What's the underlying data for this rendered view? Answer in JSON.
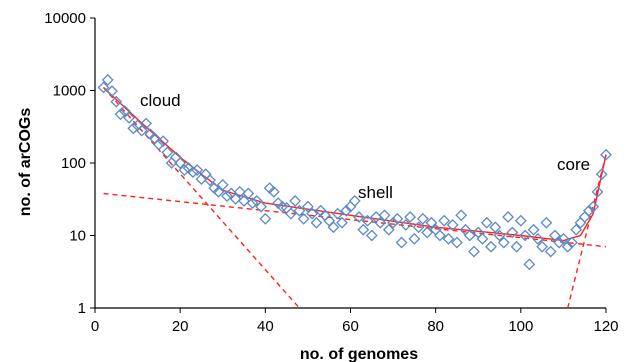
{
  "chart_data": {
    "type": "scatter",
    "xlabel": "no. of genomes",
    "ylabel": "no. of arCOGs",
    "xlim": [
      0,
      120
    ],
    "ylim": [
      1,
      10000
    ],
    "y_scale": "log",
    "grid": false,
    "x_ticks": [
      "0",
      "20",
      "40",
      "60",
      "80",
      "100",
      "120"
    ],
    "y_ticks": [
      "1",
      "10",
      "100",
      "1000",
      "10000"
    ],
    "annotations": [
      "cloud",
      "shell",
      "core"
    ],
    "marker_color": "#5b8ac6",
    "fit_color": "#ff2020",
    "points": [
      {
        "x": 2,
        "y": 1100
      },
      {
        "x": 3,
        "y": 1400
      },
      {
        "x": 4,
        "y": 980
      },
      {
        "x": 5,
        "y": 700
      },
      {
        "x": 6,
        "y": 470
      },
      {
        "x": 7,
        "y": 520
      },
      {
        "x": 8,
        "y": 420
      },
      {
        "x": 9,
        "y": 300
      },
      {
        "x": 10,
        "y": 330
      },
      {
        "x": 11,
        "y": 280
      },
      {
        "x": 12,
        "y": 350
      },
      {
        "x": 13,
        "y": 250
      },
      {
        "x": 14,
        "y": 220
      },
      {
        "x": 15,
        "y": 180
      },
      {
        "x": 16,
        "y": 200
      },
      {
        "x": 17,
        "y": 140
      },
      {
        "x": 18,
        "y": 100
      },
      {
        "x": 19,
        "y": 120
      },
      {
        "x": 20,
        "y": 100
      },
      {
        "x": 21,
        "y": 80
      },
      {
        "x": 22,
        "y": 85
      },
      {
        "x": 23,
        "y": 75
      },
      {
        "x": 24,
        "y": 80
      },
      {
        "x": 25,
        "y": 60
      },
      {
        "x": 26,
        "y": 70
      },
      {
        "x": 27,
        "y": 58
      },
      {
        "x": 28,
        "y": 45
      },
      {
        "x": 29,
        "y": 40
      },
      {
        "x": 30,
        "y": 50
      },
      {
        "x": 31,
        "y": 35
      },
      {
        "x": 32,
        "y": 38
      },
      {
        "x": 33,
        "y": 32
      },
      {
        "x": 34,
        "y": 40
      },
      {
        "x": 35,
        "y": 30
      },
      {
        "x": 36,
        "y": 38
      },
      {
        "x": 37,
        "y": 28
      },
      {
        "x": 38,
        "y": 30
      },
      {
        "x": 39,
        "y": 25
      },
      {
        "x": 40,
        "y": 17
      },
      {
        "x": 41,
        "y": 45
      },
      {
        "x": 42,
        "y": 40
      },
      {
        "x": 43,
        "y": 28
      },
      {
        "x": 44,
        "y": 25
      },
      {
        "x": 45,
        "y": 24
      },
      {
        "x": 46,
        "y": 20
      },
      {
        "x": 47,
        "y": 30
      },
      {
        "x": 48,
        "y": 22
      },
      {
        "x": 49,
        "y": 17
      },
      {
        "x": 50,
        "y": 25
      },
      {
        "x": 51,
        "y": 20
      },
      {
        "x": 52,
        "y": 15
      },
      {
        "x": 53,
        "y": 22
      },
      {
        "x": 54,
        "y": 19
      },
      {
        "x": 55,
        "y": 16
      },
      {
        "x": 56,
        "y": 13
      },
      {
        "x": 57,
        "y": 20
      },
      {
        "x": 58,
        "y": 15
      },
      {
        "x": 59,
        "y": 22
      },
      {
        "x": 60,
        "y": 25
      },
      {
        "x": 61,
        "y": 30
      },
      {
        "x": 62,
        "y": 18
      },
      {
        "x": 63,
        "y": 12
      },
      {
        "x": 64,
        "y": 16
      },
      {
        "x": 65,
        "y": 10
      },
      {
        "x": 66,
        "y": 18
      },
      {
        "x": 67,
        "y": 15
      },
      {
        "x": 68,
        "y": 19
      },
      {
        "x": 69,
        "y": 12
      },
      {
        "x": 70,
        "y": 15
      },
      {
        "x": 71,
        "y": 17
      },
      {
        "x": 72,
        "y": 8
      },
      {
        "x": 73,
        "y": 14
      },
      {
        "x": 74,
        "y": 18
      },
      {
        "x": 75,
        "y": 9
      },
      {
        "x": 76,
        "y": 13
      },
      {
        "x": 77,
        "y": 17
      },
      {
        "x": 78,
        "y": 11
      },
      {
        "x": 79,
        "y": 15
      },
      {
        "x": 80,
        "y": 12
      },
      {
        "x": 81,
        "y": 10
      },
      {
        "x": 82,
        "y": 16
      },
      {
        "x": 83,
        "y": 9
      },
      {
        "x": 84,
        "y": 14
      },
      {
        "x": 85,
        "y": 8
      },
      {
        "x": 86,
        "y": 19
      },
      {
        "x": 87,
        "y": 12
      },
      {
        "x": 88,
        "y": 10
      },
      {
        "x": 89,
        "y": 6
      },
      {
        "x": 90,
        "y": 11
      },
      {
        "x": 91,
        "y": 9
      },
      {
        "x": 92,
        "y": 15
      },
      {
        "x": 93,
        "y": 7
      },
      {
        "x": 94,
        "y": 13
      },
      {
        "x": 95,
        "y": 10
      },
      {
        "x": 96,
        "y": 8
      },
      {
        "x": 97,
        "y": 18
      },
      {
        "x": 98,
        "y": 11
      },
      {
        "x": 99,
        "y": 7
      },
      {
        "x": 100,
        "y": 16
      },
      {
        "x": 101,
        "y": 10
      },
      {
        "x": 102,
        "y": 4
      },
      {
        "x": 103,
        "y": 12
      },
      {
        "x": 104,
        "y": 9
      },
      {
        "x": 105,
        "y": 7
      },
      {
        "x": 106,
        "y": 15
      },
      {
        "x": 107,
        "y": 6
      },
      {
        "x": 108,
        "y": 10
      },
      {
        "x": 109,
        "y": 8
      },
      {
        "x": 110,
        "y": 9
      },
      {
        "x": 111,
        "y": 7
      },
      {
        "x": 112,
        "y": 8
      },
      {
        "x": 113,
        "y": 12
      },
      {
        "x": 114,
        "y": 15
      },
      {
        "x": 115,
        "y": 18
      },
      {
        "x": 116,
        "y": 22
      },
      {
        "x": 117,
        "y": 25
      },
      {
        "x": 118,
        "y": 40
      },
      {
        "x": 119,
        "y": 70
      },
      {
        "x": 120,
        "y": 130
      }
    ],
    "fit_lines": [
      {
        "style": "dashed",
        "points": [
          {
            "x": 2,
            "y": 1100
          },
          {
            "x": 48,
            "y": 1
          }
        ]
      },
      {
        "style": "dashed",
        "points": [
          {
            "x": 2,
            "y": 38
          },
          {
            "x": 120,
            "y": 7
          }
        ]
      },
      {
        "style": "dashed",
        "points": [
          {
            "x": 111,
            "y": 1
          },
          {
            "x": 120,
            "y": 130
          }
        ]
      },
      {
        "style": "solid",
        "points": [
          {
            "x": 2,
            "y": 1100
          },
          {
            "x": 10,
            "y": 400
          },
          {
            "x": 20,
            "y": 120
          },
          {
            "x": 25,
            "y": 70
          },
          {
            "x": 30,
            "y": 42
          },
          {
            "x": 40,
            "y": 28
          },
          {
            "x": 60,
            "y": 19
          },
          {
            "x": 80,
            "y": 13
          },
          {
            "x": 100,
            "y": 10
          },
          {
            "x": 110,
            "y": 8.5
          },
          {
            "x": 114,
            "y": 10
          },
          {
            "x": 117,
            "y": 20
          },
          {
            "x": 120,
            "y": 130
          }
        ]
      }
    ]
  }
}
